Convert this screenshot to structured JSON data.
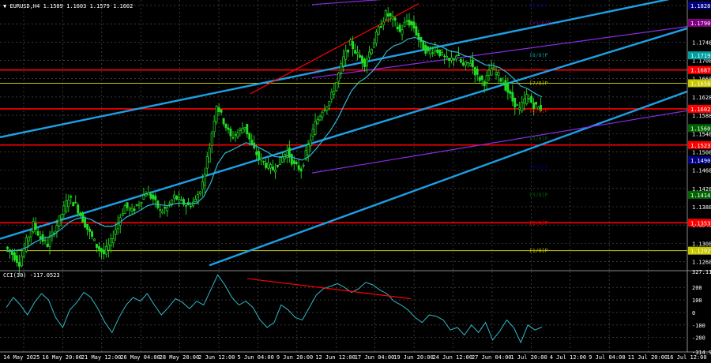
{
  "header": {
    "main_title": "▼ EURUSD,H4  1.1589 1.1603 1.1579 1.1602",
    "sub_title": "CCI(30) -117.0523"
  },
  "chart_data": [
    {
      "type": "line",
      "title": "EURUSD,H4",
      "ohlc": {
        "open": 1.1589,
        "high": 1.1603,
        "low": 1.1579,
        "close": 1.1602
      },
      "ylim": [
        1.125,
        1.184
      ],
      "x_ticks": [
        "14 May 2025",
        "16 May 20:00",
        "21 May 12:00",
        "26 May 04:00",
        "28 May 20:00",
        "2 Jun 12:00",
        "5 Jun 04:00",
        "9 Jun 20:00",
        "12 Jun 12:00",
        "17 Jun 04:00",
        "19 Jun 20:00",
        "24 Jun 12:00",
        "27 Jun 04:00",
        "1 Jul 20:00",
        "4 Jul 12:00",
        "9 Jul 04:00",
        "11 Jul 20:00",
        "16 Jul 12:00"
      ],
      "y_ticks": [
        1.1268,
        1.1308,
        1.1348,
        1.1388,
        1.1428,
        1.1468,
        1.1508,
        1.1548,
        1.1588,
        1.1628,
        1.1668,
        1.1708,
        1.1748,
        1.1788,
        1.1828
      ],
      "price_tags": [
        {
          "value": "1.1828",
          "color": "#000080"
        },
        {
          "value": "1.1790",
          "color": "#800080"
        },
        {
          "value": "1.1719",
          "color": "#00a0a0"
        },
        {
          "value": "1.1687",
          "color": "#ff0000"
        },
        {
          "value": "1.1658",
          "color": "#c8c800"
        },
        {
          "value": "1.1602",
          "color": "#ff0000"
        },
        {
          "value": "1.1560",
          "color": "#006400"
        },
        {
          "value": "1.1523",
          "color": "#ff0000"
        },
        {
          "value": "1.1490",
          "color": "#000080"
        },
        {
          "value": "1.1414",
          "color": "#006400"
        },
        {
          "value": "1.1353",
          "color": "#ff0000"
        },
        {
          "value": "1.1292",
          "color": "#c8c800"
        }
      ],
      "murray_labels": [
        {
          "text": "[8/8]P",
          "price": 1.1828,
          "color": "#000080"
        },
        {
          "text": "[+1/8]P",
          "price": 1.179,
          "color": "#800080"
        },
        {
          "text": "[8/8]P",
          "price": 1.1719,
          "color": "#00a0a0"
        },
        {
          "text": "[7/8]P",
          "price": 1.1658,
          "color": "#c8c800"
        },
        {
          "text": "[6/8]P",
          "price": 1.1598,
          "color": "#ff0000"
        },
        {
          "text": "[5/8]P",
          "price": 1.1537,
          "color": "#006400"
        },
        {
          "text": "[4/8]P",
          "price": 1.1475,
          "color": "#000080"
        },
        {
          "text": "[3/8]P",
          "price": 1.1414,
          "color": "#006400"
        },
        {
          "text": "[2/8]P",
          "price": 1.1353,
          "color": "#ff0000"
        },
        {
          "text": "[1/8]P",
          "price": 1.1292,
          "color": "#c8c800"
        }
      ],
      "horizontal_levels": [
        {
          "price": 1.1687,
          "color": "#ff0000"
        },
        {
          "price": 1.1658,
          "color": "#c8c800"
        },
        {
          "price": 1.1602,
          "color": "#ff0000"
        },
        {
          "price": 1.1523,
          "color": "#ff0000"
        },
        {
          "price": 1.1353,
          "color": "#ff0000"
        },
        {
          "price": 1.1292,
          "color": "#c8c800"
        }
      ],
      "trend_channel": [
        {
          "color": "#1ea0e6",
          "from": [
            0,
            1.154
          ],
          "to": [
            870,
            1.185
          ]
        },
        {
          "color": "#1ea0e6",
          "from": [
            0,
            1.1318
          ],
          "to": [
            870,
            1.1778
          ]
        },
        {
          "color": "#1ea0e6",
          "from": [
            265,
            1.126
          ],
          "to": [
            870,
            1.164
          ]
        }
      ],
      "purple_lines": [
        {
          "from": [
            395,
            1.183
          ],
          "to": [
            540,
            1.1848
          ]
        },
        {
          "from": [
            395,
            1.167
          ],
          "to": [
            870,
            1.1782
          ]
        },
        {
          "from": [
            395,
            1.1462
          ],
          "to": [
            870,
            1.1598
          ]
        }
      ],
      "red_lines": [
        {
          "from": [
            317,
            1.1635
          ],
          "to": [
            530,
            1.1832
          ]
        }
      ],
      "close_series": [
        1.13,
        1.1285,
        1.1265,
        1.1312,
        1.135,
        1.132,
        1.1305,
        1.1338,
        1.1372,
        1.1408,
        1.1392,
        1.136,
        1.133,
        1.1302,
        1.1285,
        1.131,
        1.1355,
        1.139,
        1.1378,
        1.1398,
        1.142,
        1.1405,
        1.1378,
        1.1385,
        1.141,
        1.1398,
        1.139,
        1.1402,
        1.144,
        1.152,
        1.1612,
        1.1575,
        1.154,
        1.155,
        1.1565,
        1.152,
        1.1495,
        1.148,
        1.147,
        1.149,
        1.151,
        1.1478,
        1.147,
        1.152,
        1.157,
        1.16,
        1.1618,
        1.166,
        1.1712,
        1.1745,
        1.172,
        1.1702,
        1.1738,
        1.1775,
        1.181,
        1.1798,
        1.177,
        1.1795,
        1.178,
        1.1742,
        1.1725,
        1.1735,
        1.1718,
        1.1705,
        1.172,
        1.1695,
        1.1705,
        1.1672,
        1.166,
        1.169,
        1.1675,
        1.165,
        1.162,
        1.16,
        1.163,
        1.161,
        1.1602
      ],
      "ma_series": [
        1.129,
        1.1292,
        1.1294,
        1.13,
        1.131,
        1.1318,
        1.1322,
        1.133,
        1.1342,
        1.1355,
        1.1362,
        1.1365,
        1.136,
        1.1352,
        1.1345,
        1.1345,
        1.1352,
        1.1365,
        1.1372,
        1.138,
        1.139,
        1.1394,
        1.1392,
        1.139,
        1.1395,
        1.1396,
        1.1394,
        1.1396,
        1.141,
        1.144,
        1.1482,
        1.1505,
        1.1512,
        1.152,
        1.1528,
        1.1524,
        1.1516,
        1.1508,
        1.1498,
        1.1496,
        1.15,
        1.1494,
        1.149,
        1.1498,
        1.1515,
        1.1535,
        1.1555,
        1.158,
        1.1612,
        1.1642,
        1.166,
        1.167,
        1.1685,
        1.1705,
        1.1728,
        1.174,
        1.1745,
        1.1755,
        1.1758,
        1.1752,
        1.1745,
        1.1742,
        1.1736,
        1.1728,
        1.1726,
        1.1718,
        1.1715,
        1.1706,
        1.1698,
        1.1697,
        1.1692,
        1.1682,
        1.1668,
        1.1652,
        1.1646,
        1.1636,
        1.1628
      ]
    },
    {
      "type": "line",
      "title": "CCI(30)",
      "ylim": [
        -315,
        327
      ],
      "y_ticks": [
        "327.116",
        "200",
        "100",
        "0",
        "-100",
        "-200",
        "-314.976"
      ],
      "levels": [
        200,
        100,
        -100,
        -200
      ],
      "current_value": -117.0523,
      "values": [
        40,
        120,
        60,
        -20,
        80,
        150,
        100,
        -40,
        -120,
        20,
        80,
        160,
        120,
        30,
        -80,
        -160,
        -40,
        60,
        120,
        90,
        150,
        60,
        -20,
        40,
        110,
        80,
        30,
        90,
        60,
        180,
        300,
        220,
        120,
        60,
        90,
        40,
        -60,
        -120,
        -80,
        60,
        20,
        -40,
        -60,
        40,
        140,
        190,
        210,
        230,
        200,
        160,
        190,
        240,
        220,
        180,
        150,
        90,
        60,
        20,
        -40,
        -80,
        -20,
        -30,
        -60,
        -140,
        -120,
        -180,
        -100,
        -160,
        -80,
        -220,
        -150,
        -60,
        -120,
        -240,
        -100,
        -140,
        -117
      ],
      "divergence": {
        "from": [
          313,
          270
        ],
        "to": [
          520,
          110
        ],
        "color": "#ff0000"
      }
    }
  ]
}
